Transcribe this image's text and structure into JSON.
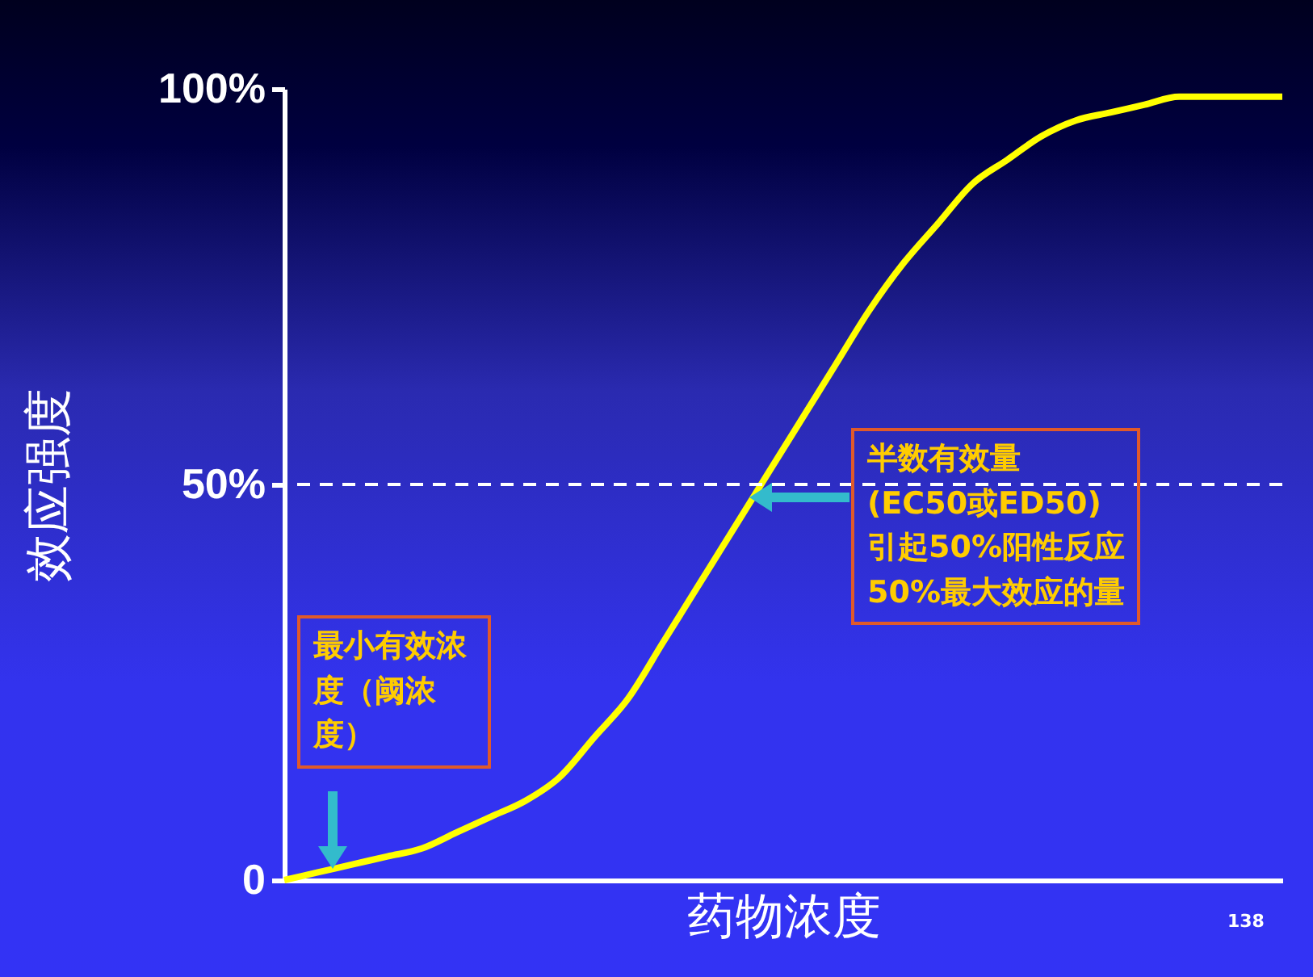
{
  "chart_data": {
    "type": "line",
    "xlabel": "药物浓度",
    "ylabel": "效应强度",
    "categories": [
      null,
      null,
      null,
      null,
      null,
      null,
      null,
      null,
      null,
      null,
      null,
      null,
      null,
      null,
      null,
      null,
      null,
      null,
      null,
      null,
      null,
      null,
      null,
      null,
      null,
      null,
      null,
      null,
      null,
      null
    ],
    "series": [
      {
        "color": "#ffff00",
        "values": [
          0,
          1,
          2,
          3,
          4,
          6,
          8,
          10,
          13,
          18,
          23,
          30,
          37,
          44,
          51,
          58,
          65,
          72,
          78,
          83,
          88,
          91,
          94,
          96,
          97,
          98,
          99,
          99,
          99,
          99
        ]
      }
    ],
    "ylim": [
      0,
      100
    ],
    "yticks": [
      {
        "value": 0,
        "label": "0"
      },
      {
        "value": 50,
        "label": "50%"
      },
      {
        "value": 100,
        "label": "100%"
      }
    ],
    "tick_labels": "y",
    "grid": false,
    "line_style": "solid",
    "ref_lines": [
      {
        "axis": "y",
        "value": 50,
        "color": "#ffffff",
        "line_style": "dashed"
      }
    ],
    "annotations": [
      "最小有效浓度（阈浓度）",
      "半数有效量\n(EC50或ED50)\n引起50%阳性反应\n50%最大效应的量",
      "138"
    ]
  }
}
